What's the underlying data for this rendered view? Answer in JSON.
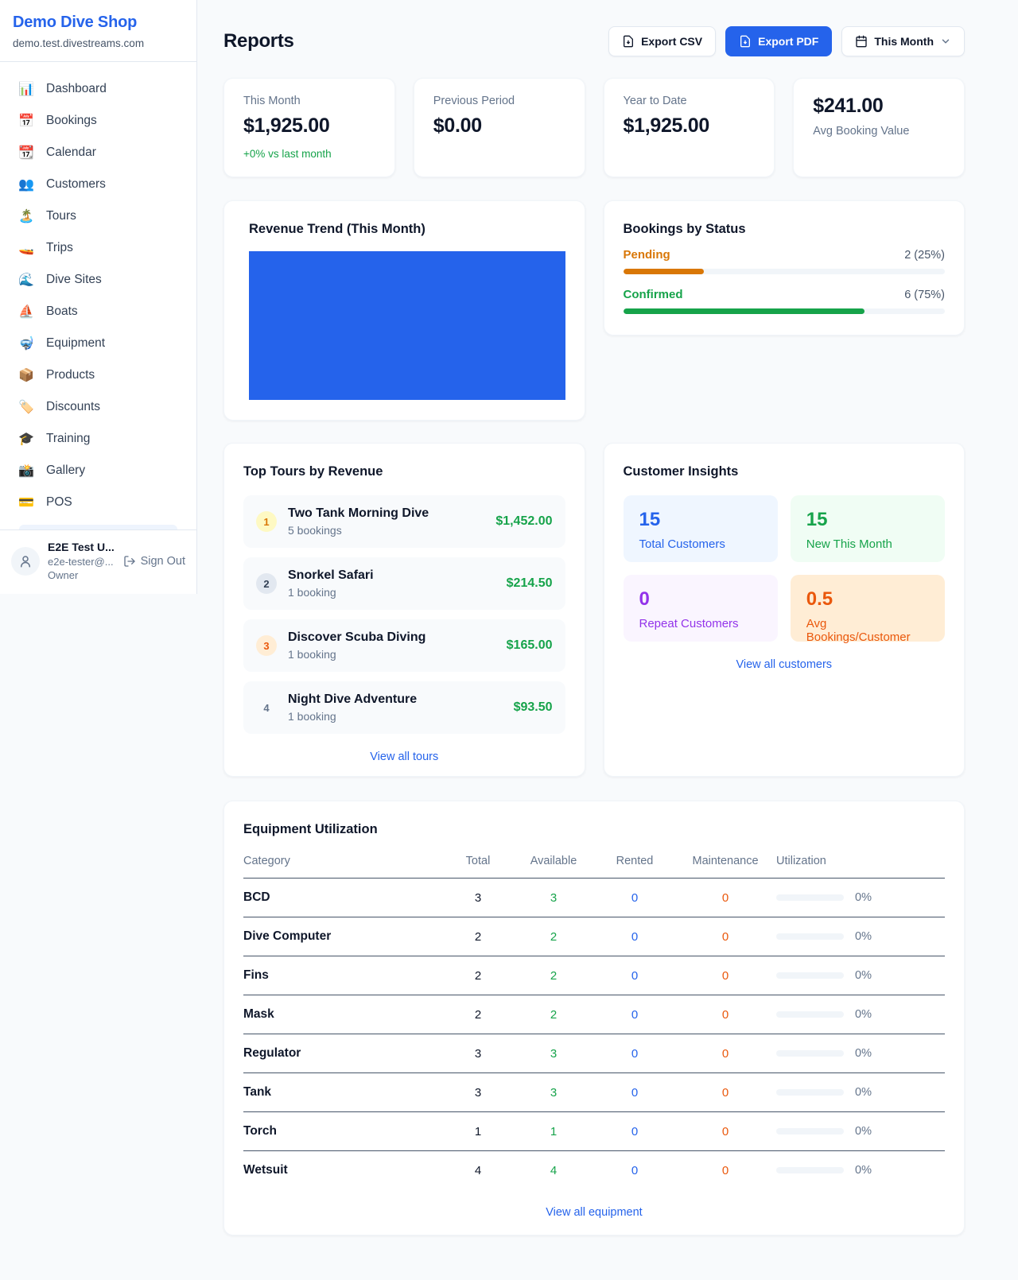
{
  "sidebar": {
    "brand": {
      "name": "Demo Dive Shop",
      "domain": "demo.test.divestreams.com"
    },
    "nav": [
      {
        "icon": "📊",
        "label": "Dashboard"
      },
      {
        "icon": "📅",
        "label": "Bookings"
      },
      {
        "icon": "📆",
        "label": "Calendar"
      },
      {
        "icon": "👥",
        "label": "Customers"
      },
      {
        "icon": "🏝️",
        "label": "Tours"
      },
      {
        "icon": "🚤",
        "label": "Trips"
      },
      {
        "icon": "🌊",
        "label": "Dive Sites"
      },
      {
        "icon": "⛵",
        "label": "Boats"
      },
      {
        "icon": "🤿",
        "label": "Equipment"
      },
      {
        "icon": "📦",
        "label": "Products"
      },
      {
        "icon": "🏷️",
        "label": "Discounts"
      },
      {
        "icon": "🎓",
        "label": "Training"
      },
      {
        "icon": "📸",
        "label": "Gallery"
      },
      {
        "icon": "💳",
        "label": "POS"
      }
    ],
    "user": {
      "name": "E2E Test U...",
      "email": "e2e-tester@...",
      "role": "Owner",
      "sign_out": "Sign Out"
    }
  },
  "header": {
    "title": "Reports",
    "export_csv": "Export CSV",
    "export_pdf": "Export PDF",
    "period": "This Month"
  },
  "stats": [
    {
      "label": "This Month",
      "value": "$1,925.00",
      "delta": "+0% vs last month"
    },
    {
      "label": "Previous Period",
      "value": "$0.00"
    },
    {
      "label": "Year to Date",
      "value": "$1,925.00"
    },
    {
      "label": "Avg Booking Value",
      "value": "$241.00"
    }
  ],
  "revenue_trend": {
    "title": "Revenue Trend (This Month)",
    "bar_color": "#2563eb"
  },
  "bookings_by_status": {
    "title": "Bookings by Status",
    "rows": [
      {
        "label": "Pending",
        "count_text": "2 (25%)",
        "pct": 25,
        "color": "#d97706"
      },
      {
        "label": "Confirmed",
        "count_text": "6 (75%)",
        "pct": 75,
        "color": "#16a34a"
      }
    ]
  },
  "top_tours": {
    "title": "Top Tours by Revenue",
    "items": [
      {
        "rank": "1",
        "name": "Two Tank Morning Dive",
        "sub": "5 bookings",
        "amount": "$1,452.00"
      },
      {
        "rank": "2",
        "name": "Snorkel Safari",
        "sub": "1 booking",
        "amount": "$214.50"
      },
      {
        "rank": "3",
        "name": "Discover Scuba Diving",
        "sub": "1 booking",
        "amount": "$165.00"
      },
      {
        "rank": "4",
        "name": "Night Dive Adventure",
        "sub": "1 booking",
        "amount": "$93.50"
      }
    ],
    "view_all": "View all tours"
  },
  "customer_insights": {
    "title": "Customer Insights",
    "tiles": [
      {
        "num": "15",
        "label": "Total Customers",
        "accent": "#2563eb"
      },
      {
        "num": "15",
        "label": "New This Month",
        "accent": "#16a34a"
      },
      {
        "num": "0",
        "label": "Repeat Customers",
        "accent": "#9333ea"
      },
      {
        "num": "0.5",
        "label": "Avg Bookings/Customer",
        "accent": "#ea580c"
      }
    ],
    "view_all": "View all customers"
  },
  "equipment": {
    "title": "Equipment Utilization",
    "columns": [
      "Category",
      "Total",
      "Available",
      "Rented",
      "Maintenance",
      "Utilization"
    ],
    "rows": [
      {
        "category": "BCD",
        "total": "3",
        "available": "3",
        "rented": "0",
        "maintenance": "0",
        "utilization": "0%",
        "pct": 0
      },
      {
        "category": "Dive Computer",
        "total": "2",
        "available": "2",
        "rented": "0",
        "maintenance": "0",
        "utilization": "0%",
        "pct": 0
      },
      {
        "category": "Fins",
        "total": "2",
        "available": "2",
        "rented": "0",
        "maintenance": "0",
        "utilization": "0%",
        "pct": 0
      },
      {
        "category": "Mask",
        "total": "2",
        "available": "2",
        "rented": "0",
        "maintenance": "0",
        "utilization": "0%",
        "pct": 0
      },
      {
        "category": "Regulator",
        "total": "3",
        "available": "3",
        "rented": "0",
        "maintenance": "0",
        "utilization": "0%",
        "pct": 0
      },
      {
        "category": "Tank",
        "total": "3",
        "available": "3",
        "rented": "0",
        "maintenance": "0",
        "utilization": "0%",
        "pct": 0
      },
      {
        "category": "Torch",
        "total": "1",
        "available": "1",
        "rented": "0",
        "maintenance": "0",
        "utilization": "0%",
        "pct": 0
      },
      {
        "category": "Wetsuit",
        "total": "4",
        "available": "4",
        "rented": "0",
        "maintenance": "0",
        "utilization": "0%",
        "pct": 0
      }
    ],
    "view_all": "View all equipment"
  },
  "chart_data": [
    {
      "type": "bar",
      "title": "Revenue Trend (This Month)",
      "categories": [
        "This Month"
      ],
      "values": [
        1925.0
      ],
      "xlabel": "",
      "ylabel": "",
      "legend": false,
      "grid": false,
      "note": "single solid full-width blue bar, no visible axes or tick labels",
      "color": "#2563eb"
    },
    {
      "type": "bar",
      "title": "Bookings by Status",
      "categories": [
        "Pending",
        "Confirmed"
      ],
      "values": [
        2,
        6
      ],
      "percent": [
        25,
        75
      ],
      "colors": [
        "#d97706",
        "#16a34a"
      ],
      "legend": false
    }
  ]
}
